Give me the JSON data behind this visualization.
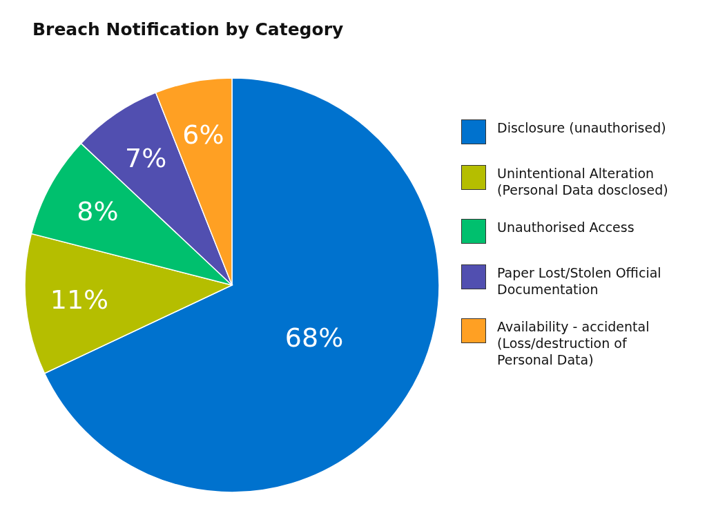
{
  "chart_data": {
    "type": "pie",
    "title": "Breach Notification by Category",
    "categories": [
      "Disclosure (unauthorised)",
      "Unintentional Alteration (Personal Data dosclosed)",
      "Unauthorised Access",
      "Paper Lost/Stolen Official Documentation",
      "Availability - accidental (Loss/destruction of Personal Data)"
    ],
    "values": [
      68,
      11,
      8,
      7,
      6
    ],
    "value_labels": [
      "68%",
      "11%",
      "8%",
      "7%",
      "6%"
    ],
    "colors": [
      "#0072ce",
      "#b5be00",
      "#00c06e",
      "#514fb0",
      "#ffa023"
    ],
    "legend": "right"
  }
}
